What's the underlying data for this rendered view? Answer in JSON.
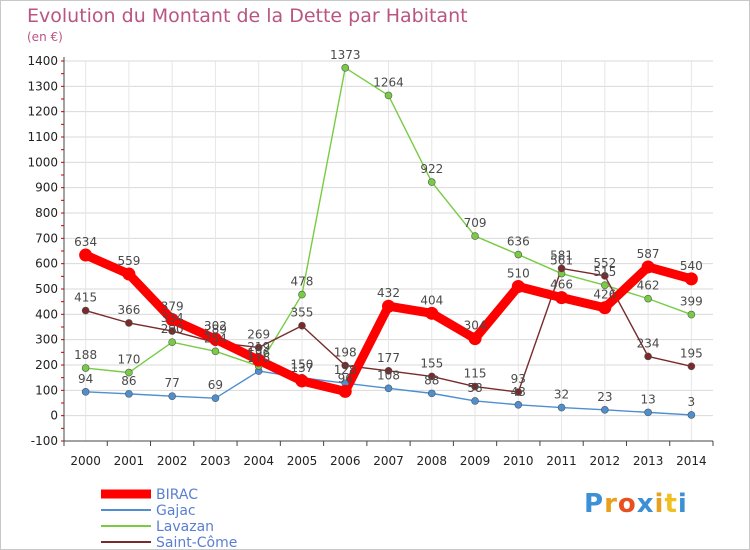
{
  "chart_data": {
    "type": "line",
    "title": "Evolution du Montant de la Dette par Habitant",
    "ylabel": "(en €)",
    "xlabel": "",
    "x": [
      "2000",
      "2001",
      "2002",
      "2003",
      "2004",
      "2005",
      "2006",
      "2007",
      "2008",
      "2009",
      "2010",
      "2011",
      "2012",
      "2013",
      "2014"
    ],
    "ylim": [
      -100,
      1400
    ],
    "yticks": [
      "-100",
      "0",
      "100",
      "200",
      "300",
      "400",
      "500",
      "600",
      "700",
      "800",
      "900",
      "1000",
      "1100",
      "1200",
      "1300",
      "1400"
    ],
    "grid": true,
    "legend": "bottom-left",
    "series": [
      {
        "name": "BIRAC",
        "color": "#ff0000",
        "values": [
          634,
          559,
          379,
          302,
          219,
          137,
          96,
          432,
          404,
          304,
          510,
          466,
          426,
          587,
          540
        ],
        "labels": [
          "634",
          "559",
          "379",
          "302",
          "219",
          "137",
          "96",
          "432",
          "404",
          "304",
          "510",
          "466",
          "426",
          "587",
          "540"
        ]
      },
      {
        "name": "Gajac",
        "color": "#4d8fd1",
        "values": [
          94,
          86,
          77,
          69,
          176,
          150,
          128,
          108,
          88,
          58,
          43,
          32,
          23,
          13,
          3
        ],
        "labels": [
          "94",
          "86",
          "77",
          "69",
          "176",
          "150",
          "128",
          "108",
          "88",
          "58",
          "43",
          "32",
          "23",
          "13",
          "3"
        ]
      },
      {
        "name": "Lavazan",
        "color": "#77cc44",
        "values": [
          188,
          170,
          290,
          254,
          196,
          478,
          1373,
          1264,
          922,
          709,
          636,
          561,
          515,
          462,
          399
        ],
        "labels": [
          "188",
          "170",
          "290",
          "254",
          "196",
          "478",
          "1373",
          "1264",
          "922",
          "709",
          "636",
          "561",
          "515",
          "462",
          "399"
        ]
      },
      {
        "name": "Saint-Côme",
        "color": "#7a2a2a",
        "values": [
          415,
          366,
          334,
          289,
          269,
          355,
          198,
          177,
          155,
          115,
          93,
          581,
          552,
          234,
          195
        ],
        "labels": [
          "415",
          "366",
          "334",
          "289",
          "269",
          "355",
          "198",
          "177",
          "155",
          "115",
          "93",
          "581",
          "552",
          "234",
          "195"
        ]
      }
    ]
  },
  "brand": {
    "letters": [
      "P",
      "r",
      "o",
      "x",
      "i",
      "t",
      "i"
    ],
    "colors": [
      "#3d8fd6",
      "#e8a020",
      "#e85020",
      "#3d8fd6",
      "#e8a020",
      "#f0c020",
      "#3d8fd6"
    ]
  }
}
